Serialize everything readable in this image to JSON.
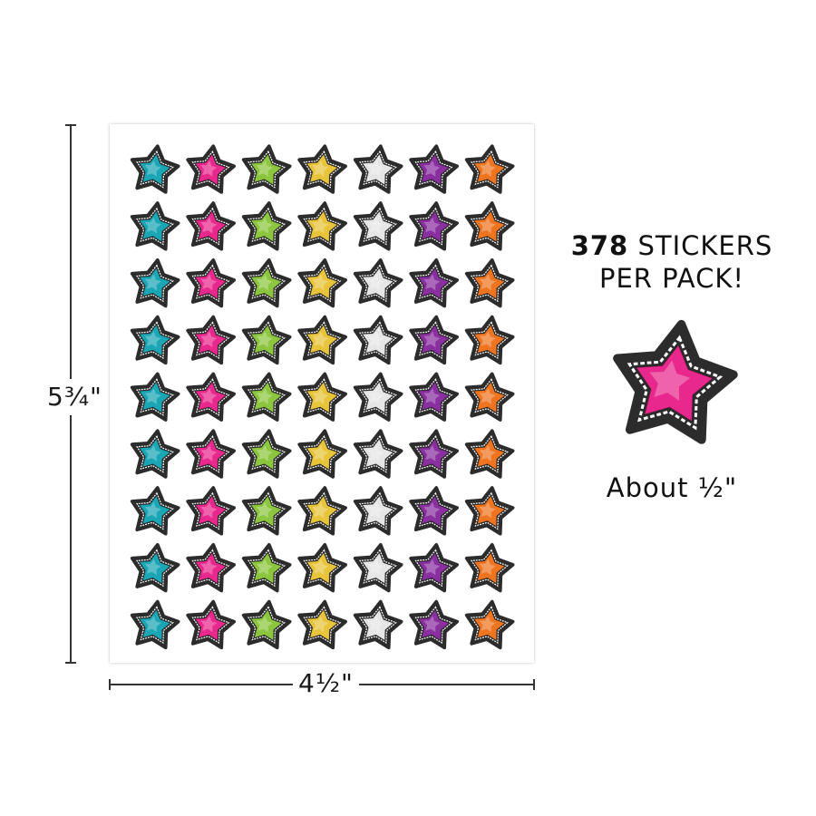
{
  "dimensions": {
    "height_label": "5¾\"",
    "width_label": "4½\""
  },
  "callout": {
    "count": "378",
    "line1_rest": " STICKERS",
    "line2": "PER PACK!"
  },
  "size_note": "About ½\"",
  "sticker_grid": {
    "rows": 9,
    "columns": 7,
    "column_colors": [
      "#1aa6b5",
      "#e8288c",
      "#8cc63f",
      "#e8c43a",
      "#e6e6e6",
      "#8a2fa0",
      "#ef7420"
    ]
  },
  "sample_sticker": {
    "color": "#e8288c"
  },
  "colors": {
    "sticker_border": "#2c2c2c",
    "stitch": "#ffffff",
    "line": "#333333"
  }
}
